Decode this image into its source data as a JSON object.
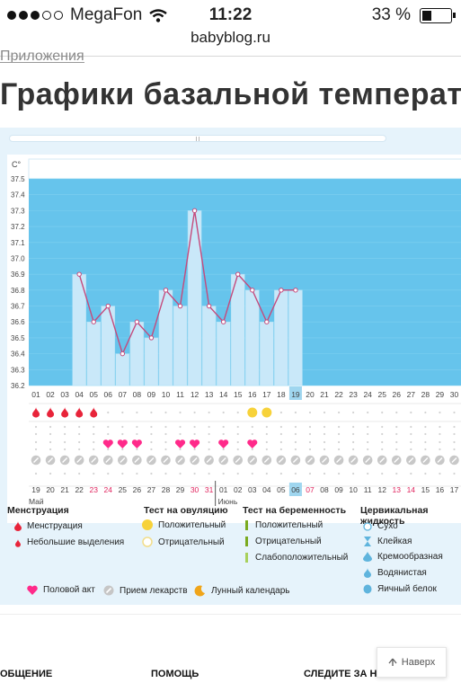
{
  "status": {
    "carrier": "MegaFon",
    "time": "11:22",
    "battery": "33 %",
    "battery_level": 0.33,
    "url": "babyblog.ru"
  },
  "page": {
    "breadcrumb": "Приложения",
    "title": "Графики базальной температуры"
  },
  "chart_data": {
    "type": "bar",
    "y_unit": "C°",
    "ylim": [
      36.2,
      37.5
    ],
    "y_ticks": [
      "37.5",
      "37.4",
      "37.3",
      "37.2",
      "37.1",
      "37.0",
      "36.9",
      "36.8",
      "36.7",
      "36.6",
      "36.5",
      "36.4",
      "36.3",
      "36.2"
    ],
    "cycle_days": [
      "01",
      "02",
      "03",
      "04",
      "05",
      "06",
      "07",
      "08",
      "09",
      "10",
      "11",
      "12",
      "13",
      "14",
      "15",
      "16",
      "17",
      "18",
      "19",
      "20",
      "21",
      "22",
      "23",
      "24",
      "25",
      "26",
      "27",
      "28",
      "29",
      "30"
    ],
    "current_day_index": 18,
    "temperatures": [
      null,
      null,
      null,
      36.9,
      36.6,
      36.7,
      36.4,
      36.6,
      36.5,
      36.8,
      36.7,
      37.3,
      36.7,
      36.6,
      36.9,
      36.8,
      36.6,
      36.8,
      36.8,
      null,
      null,
      null,
      null,
      null,
      null,
      null,
      null,
      null,
      null,
      null
    ],
    "menstruation_days": [
      0,
      1,
      2,
      3,
      4
    ],
    "ovulation_positive_days": [
      15,
      16
    ],
    "intercourse_days": [
      5,
      6,
      7,
      10,
      11,
      13,
      15
    ],
    "medication_days": [
      0,
      1,
      2,
      3,
      4,
      5,
      6,
      7,
      8,
      9,
      10,
      11,
      12,
      13,
      14,
      15,
      16,
      17,
      18,
      19,
      20,
      21,
      22,
      23,
      24,
      25,
      26,
      27,
      28,
      29
    ],
    "dates": [
      "19",
      "20",
      "21",
      "22",
      "23",
      "24",
      "25",
      "26",
      "27",
      "28",
      "29",
      "30",
      "31",
      "01",
      "02",
      "03",
      "04",
      "05",
      "06",
      "07",
      "08",
      "09",
      "10",
      "11",
      "12",
      "13",
      "14",
      "15",
      "16",
      "17"
    ],
    "red_date_indices": [
      4,
      5,
      11,
      12,
      19,
      25,
      26
    ],
    "current_date_index": 18,
    "month_start": "Май",
    "month_next": "Июнь",
    "month_next_index": 13
  },
  "legend": {
    "menstruation": {
      "title": "Менструация",
      "items": [
        "Менструация",
        "Небольшие выделения"
      ]
    },
    "ovulation": {
      "title": "Тест на овуляцию",
      "items": [
        "Положительный",
        "Отрицательный"
      ]
    },
    "pregnancy": {
      "title": "Тест на беременность",
      "items": [
        "Положительный",
        "Отрицательный",
        "Слабоположительный"
      ]
    },
    "cervical": {
      "title": "Цервикальная жидкость",
      "items": [
        "Сухо",
        "Клейкая",
        "Кремообразная",
        "Водянистая",
        "Яичный белок"
      ]
    },
    "bottom": [
      "Половой акт",
      "Прием лекарств",
      "Лунный календарь"
    ]
  },
  "footer": {
    "col1": "ОБЩЕНИЕ",
    "col2": "ПОМОЩЬ",
    "col3": "СЛЕДИТЕ ЗА НАМИ",
    "back": "Наверх"
  },
  "colors": {
    "chart_bg": "#66c4ec",
    "bar": "#c9e8f9",
    "line": "#c54a7c",
    "accent": "#ff2a6a",
    "yellow": "#f7d23a",
    "current": "#9fd6ef"
  }
}
